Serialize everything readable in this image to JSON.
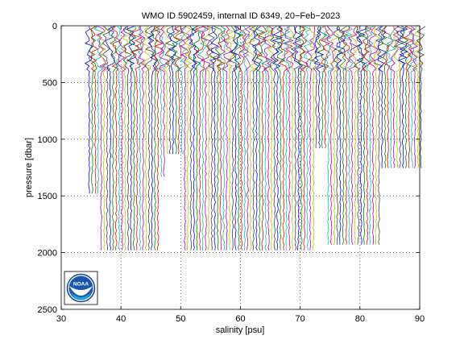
{
  "chart_data": {
    "type": "line",
    "title": "WMO ID 5902459, internal ID 6349, 20−Feb−2023",
    "xlabel": "salinity [psu]",
    "ylabel": "pressure [dbar]",
    "xlim": [
      30,
      90
    ],
    "ylim": [
      2500,
      0
    ],
    "y_reversed": true,
    "grid": true,
    "grid_style": "dotted",
    "x_ticks": [
      30,
      40,
      50,
      60,
      70,
      80,
      90
    ],
    "y_ticks": [
      0,
      500,
      1000,
      1500,
      2000,
      2500
    ],
    "colors": [
      "#0000ff",
      "#008000",
      "#ff0000",
      "#00bfbf",
      "#bf00bf",
      "#bfbf00",
      "#404040"
    ],
    "profile_offset_psu": 0.5,
    "series": {
      "profile_count": 112,
      "first_profile_surface_salinity": 34.2,
      "last_profile_surface_salinity": 89.7,
      "max_pressure_by_segment": [
        {
          "from_index": 0,
          "to_index": 4,
          "max_pressure": 1500
        },
        {
          "from_index": 4,
          "to_index": 24,
          "max_pressure": 2000
        },
        {
          "from_index": 24,
          "to_index": 26,
          "max_pressure": 1350
        },
        {
          "from_index": 26,
          "to_index": 32,
          "max_pressure": 1150
        },
        {
          "from_index": 32,
          "to_index": 76,
          "max_pressure": 2000
        },
        {
          "from_index": 76,
          "to_index": 80,
          "max_pressure": 1100
        },
        {
          "from_index": 80,
          "to_index": 98,
          "max_pressure": 1930
        },
        {
          "from_index": 98,
          "to_index": 112,
          "max_pressure": 1260
        }
      ]
    }
  },
  "logo": {
    "name": "noaa-logo",
    "text": "NOAA"
  }
}
